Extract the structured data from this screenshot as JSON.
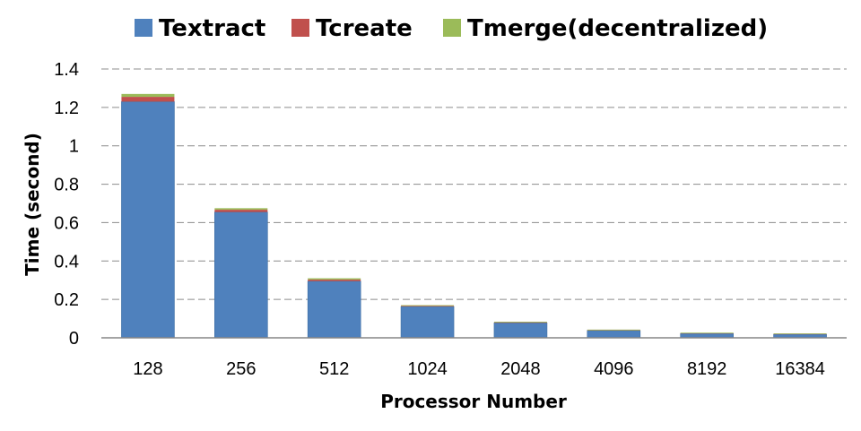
{
  "chart_data": {
    "type": "bar",
    "stacked": true,
    "categories": [
      "128",
      "256",
      "512",
      "1024",
      "2048",
      "4096",
      "8192",
      "16384"
    ],
    "series": [
      {
        "name": "Textract",
        "color": "#4F81BD",
        "values": [
          1.23,
          0.655,
          0.295,
          0.163,
          0.078,
          0.038,
          0.022,
          0.018
        ]
      },
      {
        "name": "Tcreate",
        "color": "#C0504D",
        "values": [
          0.025,
          0.012,
          0.008,
          0.003,
          0.002,
          0.001,
          0.001,
          0.001
        ]
      },
      {
        "name": "Tmerge(decentralized)",
        "color": "#9BBB59",
        "values": [
          0.015,
          0.008,
          0.007,
          0.004,
          0.003,
          0.003,
          0.003,
          0.003
        ]
      }
    ],
    "xlabel": "Processor Number",
    "ylabel": "Time (second)",
    "ylim": [
      0,
      1.4
    ],
    "yticks": [
      "0",
      "0.2",
      "0.4",
      "0.6",
      "0.8",
      "1",
      "1.2",
      "1.4"
    ],
    "grid": true,
    "legend_position": "top"
  }
}
